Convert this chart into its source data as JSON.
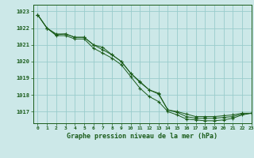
{
  "title": "Graphe pression niveau de la mer (hPa)",
  "bg_color": "#cce8e8",
  "grid_color": "#99cccc",
  "line_color": "#1a5c1a",
  "xlim": [
    -0.5,
    23
  ],
  "ylim": [
    1016.3,
    1023.4
  ],
  "yticks": [
    1017,
    1018,
    1019,
    1020,
    1021,
    1022,
    1023
  ],
  "xticks": [
    0,
    1,
    2,
    3,
    4,
    5,
    6,
    7,
    8,
    9,
    10,
    11,
    12,
    13,
    14,
    15,
    16,
    17,
    18,
    19,
    20,
    21,
    22,
    23
  ],
  "series1_x": [
    0,
    1,
    2,
    3,
    4,
    5,
    6,
    7,
    8,
    9,
    10,
    11,
    12,
    13,
    14,
    15,
    16,
    17,
    18,
    19,
    20,
    21,
    22,
    23
  ],
  "series1_y": [
    1022.8,
    1022.0,
    1021.65,
    1021.65,
    1021.45,
    1021.45,
    1021.0,
    1020.85,
    1020.4,
    1020.0,
    1019.3,
    1018.75,
    1018.3,
    1018.1,
    1017.1,
    1017.0,
    1016.85,
    1016.7,
    1016.7,
    1016.7,
    1016.75,
    1016.8,
    1016.9,
    1016.9
  ],
  "series2_x": [
    0,
    1,
    2,
    3,
    4,
    5,
    6,
    7,
    8,
    9,
    10,
    11,
    12,
    13,
    14,
    15,
    16,
    17,
    18,
    19,
    20,
    21,
    22,
    23
  ],
  "series2_y": [
    1022.8,
    1022.0,
    1021.55,
    1021.55,
    1021.35,
    1021.35,
    1020.8,
    1020.5,
    1020.2,
    1019.8,
    1019.1,
    1018.4,
    1017.9,
    1017.6,
    1017.0,
    1016.8,
    1016.55,
    1016.5,
    1016.45,
    1016.45,
    1016.5,
    1016.6,
    1016.8,
    1016.9
  ],
  "series3_x": [
    0,
    1,
    2,
    3,
    4,
    5,
    6,
    7,
    8,
    9,
    10,
    11,
    12,
    13,
    14,
    15,
    16,
    17,
    18,
    19,
    20,
    21,
    22,
    23
  ],
  "series3_y": [
    1022.8,
    1022.0,
    1021.6,
    1021.65,
    1021.45,
    1021.45,
    1021.0,
    1020.7,
    1020.4,
    1020.0,
    1019.3,
    1018.8,
    1018.3,
    1018.05,
    1017.1,
    1016.95,
    1016.7,
    1016.6,
    1016.6,
    1016.6,
    1016.65,
    1016.7,
    1016.85,
    1016.9
  ],
  "ylabel_fontsize": 5,
  "xlabel_fontsize": 6,
  "tick_fontsize": 4.5
}
